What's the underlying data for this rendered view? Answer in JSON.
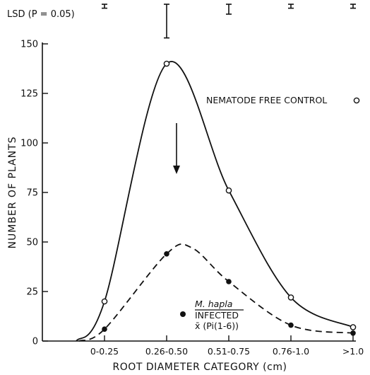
{
  "chart_data": {
    "type": "line",
    "categories": [
      "0-0.25",
      "0.26-0.50",
      "0.51-0.75",
      "0.76-1.0",
      ">1.0"
    ],
    "xlabel": "ROOT DIAMETER CATEGORY (cm)",
    "ylabel": "NUMBER OF PLANTS",
    "ylim": [
      0,
      150
    ],
    "yticks": [
      0,
      25,
      50,
      75,
      100,
      125,
      150
    ],
    "grid": false,
    "series": [
      {
        "name": "NEMATODE FREE CONTROL",
        "marker": "open-circle",
        "line": "solid",
        "values": [
          20,
          140,
          76,
          22,
          7
        ]
      },
      {
        "name_lines": [
          "M. hapla",
          "INFECTED",
          "x̄ (Pi(1-6))"
        ],
        "marker": "filled-circle",
        "line": "dashed",
        "values": [
          6,
          44,
          30,
          8,
          4
        ]
      }
    ],
    "lsd": {
      "label": "LSD (P = 0.05)",
      "values": [
        2,
        17,
        5,
        2,
        2
      ]
    },
    "annotations": [
      {
        "type": "arrow",
        "category": "0.26-0.50",
        "from": 110,
        "to": 85,
        "direction": "down"
      }
    ]
  }
}
